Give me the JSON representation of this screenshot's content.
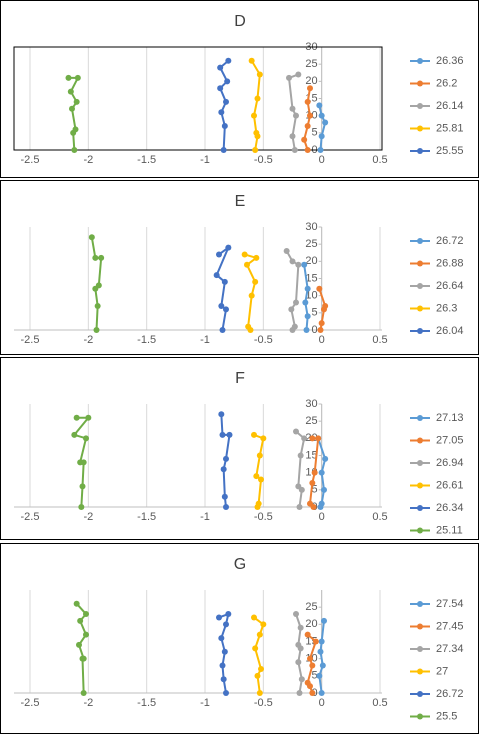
{
  "chart_data": [
    {
      "type": "scatter",
      "title": "D",
      "xlim": [
        -2.5,
        0.5
      ],
      "xticks": [
        -2.5,
        -2,
        -1.5,
        -1,
        -0.5,
        0,
        0.5
      ],
      "ylim": [
        0,
        30
      ],
      "yticks": [
        0,
        5,
        10,
        15,
        20,
        25,
        30
      ],
      "grid": "x",
      "plot_border": true,
      "series": [
        {
          "name": "26.36",
          "color": "#5b9bd5",
          "x": [
            -0.02,
            0,
            0.03,
            0,
            -0.01
          ],
          "values": [
            13,
            10,
            8,
            4,
            0
          ]
        },
        {
          "name": "26.2",
          "color": "#ed7d31",
          "x": [
            -0.1,
            -0.12,
            -0.1,
            -0.12,
            -0.15,
            -0.12
          ],
          "values": [
            18,
            14,
            10,
            7,
            3,
            0
          ]
        },
        {
          "name": "26.14",
          "color": "#a5a5a5",
          "x": [
            -0.2,
            -0.28,
            -0.25,
            -0.22,
            -0.25,
            -0.23
          ],
          "values": [
            22,
            21,
            12,
            10,
            4,
            0
          ]
        },
        {
          "name": "25.81",
          "color": "#ffc000",
          "x": [
            -0.6,
            -0.53,
            -0.55,
            -0.58,
            -0.56,
            -0.55,
            -0.57
          ],
          "values": [
            26,
            22,
            15,
            10,
            5,
            4,
            0
          ]
        },
        {
          "name": "25.55",
          "color": "#4472c4",
          "x": [
            -0.8,
            -0.87,
            -0.81,
            -0.87,
            -0.82,
            -0.86,
            -0.83,
            -0.84
          ],
          "values": [
            26,
            24,
            20,
            18,
            14,
            11,
            7,
            0
          ]
        },
        {
          "color": "#70ad47",
          "x": [
            -2.17,
            -2.09,
            -2.15,
            -2.1,
            -2.14,
            -2.11,
            -2.13,
            -2.12
          ],
          "values": [
            21,
            21,
            17,
            14,
            12,
            6,
            5,
            0
          ]
        }
      ]
    },
    {
      "type": "scatter",
      "title": "E",
      "xlim": [
        -2.5,
        0.5
      ],
      "xticks": [
        -2.5,
        -2,
        -1.5,
        -1,
        -0.5,
        0,
        0.5
      ],
      "ylim": [
        0,
        30
      ],
      "yticks": [
        0,
        5,
        10,
        15,
        20,
        25,
        30
      ],
      "grid": "x",
      "plot_border": false,
      "series": [
        {
          "name": "26.72",
          "color": "#5b9bd5",
          "x": [
            -0.15,
            -0.12,
            -0.14,
            -0.12,
            -0.13
          ],
          "values": [
            19,
            12,
            8,
            4,
            0
          ]
        },
        {
          "name": "26.88",
          "color": "#ed7d31",
          "x": [
            -0.02,
            0.03,
            0.02,
            0,
            -0.01
          ],
          "values": [
            12,
            7,
            6,
            2,
            0
          ]
        },
        {
          "name": "26.64",
          "color": "#a5a5a5",
          "x": [
            -0.3,
            -0.25,
            -0.2,
            -0.22,
            -0.26,
            -0.23,
            -0.25
          ],
          "values": [
            23,
            20,
            19,
            8,
            6,
            1,
            0
          ]
        },
        {
          "name": "26.3",
          "color": "#ffc000",
          "x": [
            -0.66,
            -0.56,
            -0.64,
            -0.57,
            -0.6,
            -0.63,
            -0.61
          ],
          "values": [
            22,
            21,
            19,
            14,
            10,
            1,
            0
          ]
        },
        {
          "name": "26.04",
          "color": "#4472c4",
          "x": [
            -0.88,
            -0.8,
            -0.9,
            -0.83,
            -0.86,
            -0.82,
            -0.85
          ],
          "values": [
            22,
            24,
            16,
            14,
            7,
            6,
            0
          ]
        },
        {
          "color": "#70ad47",
          "x": [
            -1.97,
            -1.94,
            -1.89,
            -1.91,
            -1.94,
            -1.92,
            -1.93
          ],
          "values": [
            27,
            21,
            21,
            13,
            12,
            7,
            0
          ]
        }
      ]
    },
    {
      "type": "scatter",
      "title": "F",
      "xlim": [
        -2.5,
        0.5
      ],
      "xticks": [
        -2.5,
        -2,
        -1.5,
        -1,
        -0.5,
        0,
        0.5
      ],
      "ylim": [
        0,
        30
      ],
      "yticks": [
        0,
        5,
        10,
        15,
        20,
        25,
        30
      ],
      "grid": "x",
      "plot_border": false,
      "series": [
        {
          "name": "27.13",
          "color": "#5b9bd5",
          "x": [
            -0.03,
            0.03,
            0,
            0.02,
            0,
            -0.01
          ],
          "values": [
            20,
            14,
            10,
            5,
            1,
            0
          ]
        },
        {
          "name": "27.05",
          "color": "#ed7d31",
          "x": [
            -0.08,
            -0.03,
            -0.06,
            -0.08,
            -0.1,
            -0.07
          ],
          "values": [
            20,
            20,
            10,
            7,
            1,
            0
          ]
        },
        {
          "name": "26.94",
          "color": "#a5a5a5",
          "x": [
            -0.22,
            -0.15,
            -0.18,
            -0.2,
            -0.17,
            -0.19
          ],
          "values": [
            22,
            20,
            15,
            6,
            5,
            0
          ]
        },
        {
          "name": "26.61",
          "color": "#ffc000",
          "x": [
            -0.58,
            -0.5,
            -0.53,
            -0.56,
            -0.52,
            -0.54,
            -0.55
          ],
          "values": [
            21,
            20,
            15,
            9,
            8,
            1,
            0
          ]
        },
        {
          "name": "26.34",
          "color": "#4472c4",
          "x": [
            -0.86,
            -0.85,
            -0.79,
            -0.82,
            -0.84,
            -0.83,
            -0.82
          ],
          "values": [
            27,
            21,
            21,
            14,
            11,
            3,
            0
          ]
        },
        {
          "name": "25.11",
          "color": "#70ad47",
          "x": [
            -2.1,
            -2.0,
            -2.12,
            -2.02,
            -2.07,
            -2.04,
            -2.05,
            -2.06
          ],
          "values": [
            26,
            26,
            21,
            20,
            13,
            13,
            6,
            0
          ]
        }
      ]
    },
    {
      "type": "scatter",
      "title": "G",
      "xlim": [
        -2.5,
        0.5
      ],
      "xticks": [
        -2.5,
        -2,
        -1.5,
        -1,
        -0.5,
        0,
        0.5
      ],
      "ylim": [
        0,
        30
      ],
      "yticks": [
        0,
        5,
        10,
        15,
        20,
        25
      ],
      "grid": "x",
      "plot_border": false,
      "series": [
        {
          "name": "27.54",
          "color": "#5b9bd5",
          "x": [
            0.02,
            0,
            -0.01,
            0.01,
            -0.02,
            0
          ],
          "values": [
            21,
            15,
            12,
            8,
            5,
            0
          ]
        },
        {
          "name": "27.45",
          "color": "#ed7d31",
          "x": [
            -0.12,
            -0.05,
            -0.1,
            -0.08,
            -0.12,
            -0.1,
            -0.08
          ],
          "values": [
            17,
            15,
            10,
            8,
            3,
            2,
            0
          ]
        },
        {
          "name": "27.34",
          "color": "#a5a5a5",
          "x": [
            -0.22,
            -0.18,
            -0.2,
            -0.18,
            -0.2,
            -0.17,
            -0.19
          ],
          "values": [
            23,
            19,
            14,
            13,
            9,
            4,
            0
          ]
        },
        {
          "name": "27",
          "color": "#ffc000",
          "x": [
            -0.58,
            -0.5,
            -0.53,
            -0.57,
            -0.52,
            -0.55,
            -0.53
          ],
          "values": [
            22,
            20,
            17,
            13,
            7,
            5,
            0
          ]
        },
        {
          "name": "26.72",
          "color": "#4472c4",
          "x": [
            -0.88,
            -0.8,
            -0.82,
            -0.86,
            -0.83,
            -0.85,
            -0.84,
            -0.82
          ],
          "values": [
            22,
            23,
            20,
            16,
            12,
            8,
            4,
            0
          ]
        },
        {
          "name": "25.5",
          "color": "#70ad47",
          "x": [
            -2.1,
            -2.02,
            -2.07,
            -2.02,
            -2.08,
            -2.04,
            -2.05,
            -2.04
          ],
          "values": [
            26,
            23,
            21,
            17,
            14,
            10,
            10,
            0
          ]
        }
      ]
    }
  ]
}
